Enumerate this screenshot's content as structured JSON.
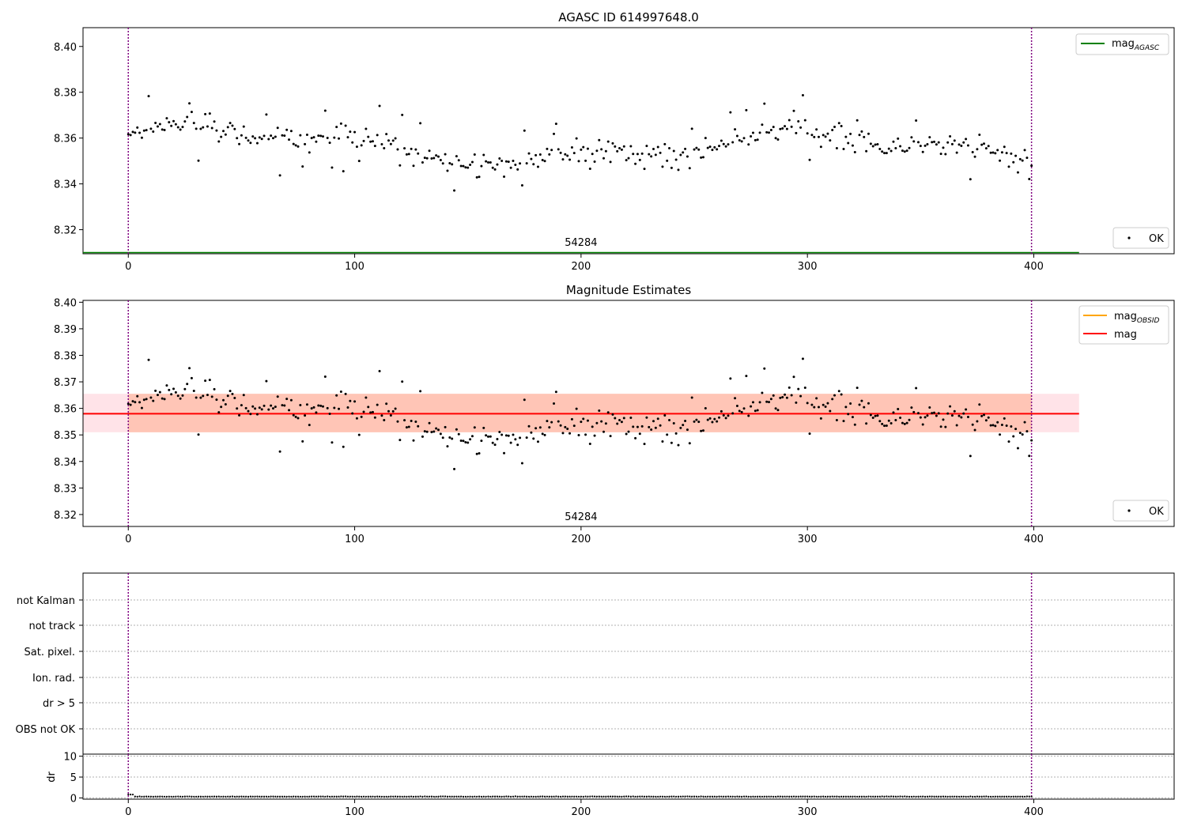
{
  "chart_data": [
    {
      "type": "scatter",
      "title": "AGASC ID 614997648.0",
      "xlim": [
        -20,
        462
      ],
      "ylim": [
        8.3095,
        8.4082
      ],
      "x_ticks": [
        0,
        100,
        200,
        300,
        400
      ],
      "y_ticks": [
        8.32,
        8.34,
        8.36,
        8.38,
        8.4
      ],
      "y_tick_labels": [
        "8.32",
        "8.34",
        "8.36",
        "8.38",
        "8.40"
      ],
      "obsid_label": "54284",
      "obsid_label_x": 200,
      "obsid_bounds": [
        0,
        399
      ],
      "mag_agasc": 8.31,
      "mag_agasc_line_color": "#008000",
      "legend_upper": [
        {
          "label": "mag",
          "sub": "AGASC",
          "color": "#008000"
        }
      ],
      "legend_lower": [
        {
          "label": "OK",
          "marker": "point",
          "color": "#000000"
        }
      ],
      "series": [
        {
          "name": "OK",
          "color": "#000000",
          "x_start": 0,
          "x_end": 399,
          "n_points": 400
        }
      ]
    },
    {
      "type": "scatter",
      "title": "Magnitude Estimates",
      "xlim": [
        -20,
        462
      ],
      "ylim": [
        8.3155,
        8.4007
      ],
      "x_ticks": [
        0,
        100,
        200,
        300,
        400
      ],
      "y_ticks": [
        8.32,
        8.33,
        8.34,
        8.35,
        8.36,
        8.37,
        8.38,
        8.39,
        8.4
      ],
      "y_tick_labels": [
        "8.32",
        "8.33",
        "8.34",
        "8.35",
        "8.36",
        "8.37",
        "8.38",
        "8.39",
        "8.40"
      ],
      "obsid_label": "54284",
      "obsid_label_x": 200,
      "obsid_bounds": [
        0,
        399
      ],
      "mag": 8.358,
      "mag_band": [
        8.351,
        8.3655
      ],
      "mag_obsid_band": [
        8.351,
        8.3655
      ],
      "legend_upper": [
        {
          "label": "mag",
          "sub": "OBSID",
          "color": "#ffa500"
        },
        {
          "label": "mag",
          "sub": "",
          "color": "#ff0000"
        }
      ],
      "legend_lower": [
        {
          "label": "OK",
          "marker": "point",
          "color": "#000000"
        }
      ],
      "colors": {
        "mag_line": "#ff0000",
        "mag_band": "#ffc0cb",
        "obsid_band": "#ffa07a"
      }
    },
    {
      "type": "scatter",
      "title": "",
      "xlim": [
        -20,
        462
      ],
      "flag_categories": [
        "not Kalman",
        "not track",
        "Sat. pixel.",
        "Ion. rad.",
        "dr > 5",
        "OBS not OK"
      ],
      "flag_points": [],
      "obsid_bounds": [
        0,
        399
      ]
    },
    {
      "type": "line",
      "title": "",
      "xlim": [
        -20,
        462
      ],
      "ylim": [
        -0.3,
        10.5
      ],
      "x_ticks": [
        0,
        100,
        200,
        300,
        400
      ],
      "y_ticks": [
        0,
        5,
        10
      ],
      "y_tick_labels": [
        "0",
        "5",
        "10"
      ],
      "ylabel": "dr",
      "dr_level": 0.3,
      "obsid_bounds": [
        0,
        399
      ]
    }
  ],
  "colors": {
    "obsid_boundary": "#800080",
    "axes": "#000000",
    "grid": "#b0b0b0"
  }
}
